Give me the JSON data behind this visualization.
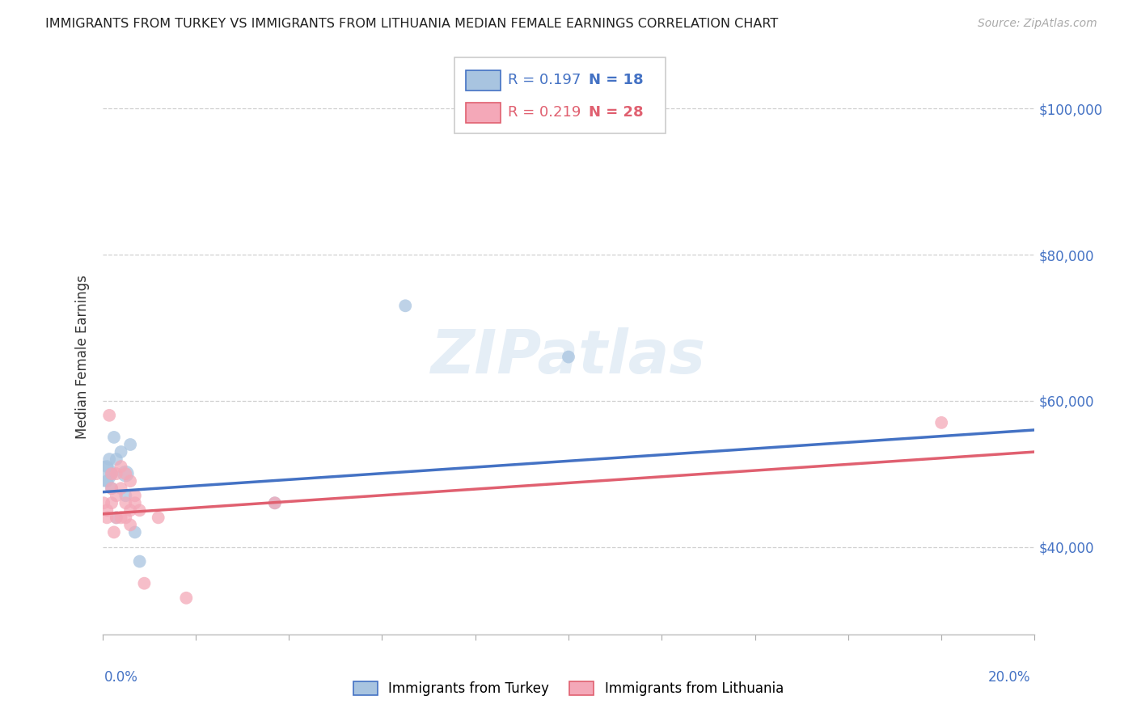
{
  "title": "IMMIGRANTS FROM TURKEY VS IMMIGRANTS FROM LITHUANIA MEDIAN FEMALE EARNINGS CORRELATION CHART",
  "source": "Source: ZipAtlas.com",
  "ylabel": "Median Female Earnings",
  "legend_turkey": "Immigrants from Turkey",
  "legend_lithuania": "Immigrants from Lithuania",
  "R_turkey": 0.197,
  "N_turkey": 18,
  "R_lithuania": 0.219,
  "N_lithuania": 28,
  "turkey_color": "#a8c4e0",
  "turkey_line_color": "#4472c4",
  "lithuania_color": "#f4a8b8",
  "lithuania_line_color": "#e06070",
  "watermark": "ZIPatlas",
  "xlim_min": 0.0,
  "xlim_max": 0.2,
  "ylim_min": 28000,
  "ylim_max": 104000,
  "yticks": [
    40000,
    60000,
    80000,
    100000
  ],
  "ytick_labels": [
    "$40,000",
    "$60,000",
    "$80,000",
    "$100,000"
  ],
  "turkey_x": [
    0.0003,
    0.001,
    0.001,
    0.0015,
    0.002,
    0.002,
    0.0025,
    0.003,
    0.003,
    0.004,
    0.005,
    0.005,
    0.006,
    0.007,
    0.008,
    0.037,
    0.065,
    0.1
  ],
  "turkey_y": [
    50000,
    51000,
    49000,
    52000,
    50000,
    48000,
    55000,
    44000,
    52000,
    53000,
    50000,
    47000,
    54000,
    42000,
    38000,
    46000,
    73000,
    66000
  ],
  "turkey_sizes": [
    550,
    130,
    130,
    130,
    130,
    130,
    130,
    130,
    130,
    130,
    220,
    130,
    130,
    130,
    130,
    130,
    130,
    130
  ],
  "lithuania_x": [
    0.0003,
    0.001,
    0.001,
    0.0015,
    0.002,
    0.002,
    0.002,
    0.0025,
    0.003,
    0.003,
    0.003,
    0.004,
    0.004,
    0.004,
    0.005,
    0.005,
    0.005,
    0.006,
    0.006,
    0.006,
    0.007,
    0.007,
    0.008,
    0.009,
    0.012,
    0.018,
    0.037,
    0.18
  ],
  "lithuania_y": [
    46000,
    45000,
    44000,
    58000,
    48000,
    46000,
    50000,
    42000,
    50000,
    47000,
    44000,
    51000,
    48000,
    44000,
    50000,
    46000,
    44000,
    49000,
    45000,
    43000,
    47000,
    46000,
    45000,
    35000,
    44000,
    33000,
    46000,
    57000
  ],
  "lithuania_sizes": [
    130,
    130,
    130,
    130,
    130,
    130,
    130,
    130,
    130,
    130,
    130,
    130,
    130,
    130,
    130,
    130,
    130,
    130,
    130,
    130,
    130,
    130,
    130,
    130,
    130,
    130,
    130,
    130
  ],
  "turkey_trend_x0": 0.0,
  "turkey_trend_y0": 47500,
  "turkey_trend_x1": 0.2,
  "turkey_trend_y1": 56000,
  "lithuania_trend_x0": 0.0,
  "lithuania_trend_y0": 44500,
  "lithuania_trend_x1": 0.2,
  "lithuania_trend_y1": 53000,
  "grid_color": "#d0d0d0",
  "bg_color": "#ffffff",
  "title_fontsize": 11.5,
  "source_fontsize": 10,
  "ylabel_fontsize": 12,
  "tick_fontsize": 12,
  "legend_fontsize": 12
}
